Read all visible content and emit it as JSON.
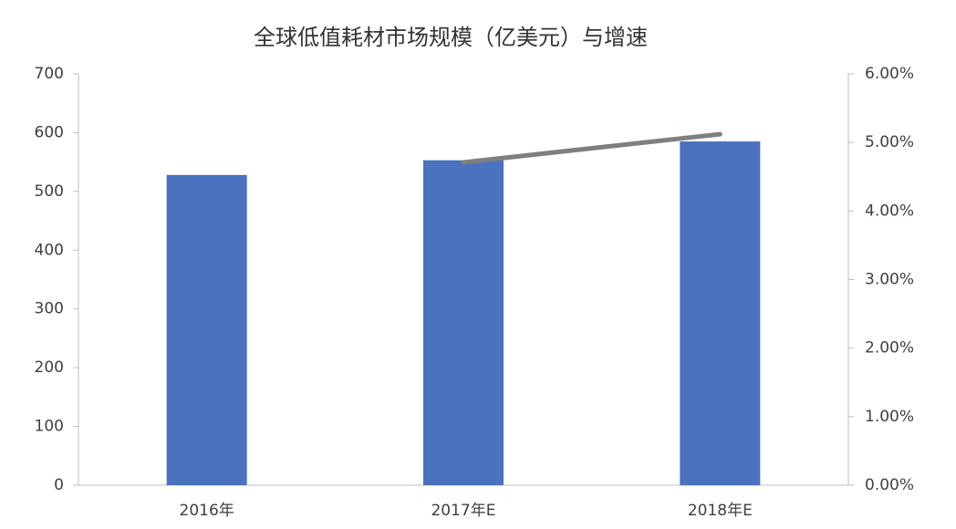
{
  "chart_data": {
    "type": "bar",
    "title": "全球低值耗材市场规模（亿美元）与增速",
    "categories": [
      "2016年",
      "2017年E",
      "2018年E"
    ],
    "series": [
      {
        "type": "bar",
        "color": "#4a72be",
        "values": [
          528,
          553,
          585
        ]
      },
      {
        "type": "line",
        "color": "#7f7f7f",
        "axis": "y2",
        "values": [
          null,
          4.71,
          5.12
        ]
      }
    ],
    "ylim": [
      0,
      700
    ],
    "yticks": [
      0,
      100,
      200,
      300,
      400,
      500,
      600,
      700
    ],
    "y2lim": [
      0,
      6
    ],
    "y2ticks": [
      {
        "value": 0,
        "label": "0.00%"
      },
      {
        "value": 1,
        "label": "1.00%"
      },
      {
        "value": 2,
        "label": "2.00%"
      },
      {
        "value": 3,
        "label": "3.00%"
      },
      {
        "value": 4,
        "label": "4.00%"
      },
      {
        "value": 5,
        "label": "5.00%"
      },
      {
        "value": 6,
        "label": "6.00%"
      }
    ],
    "grid": false
  }
}
